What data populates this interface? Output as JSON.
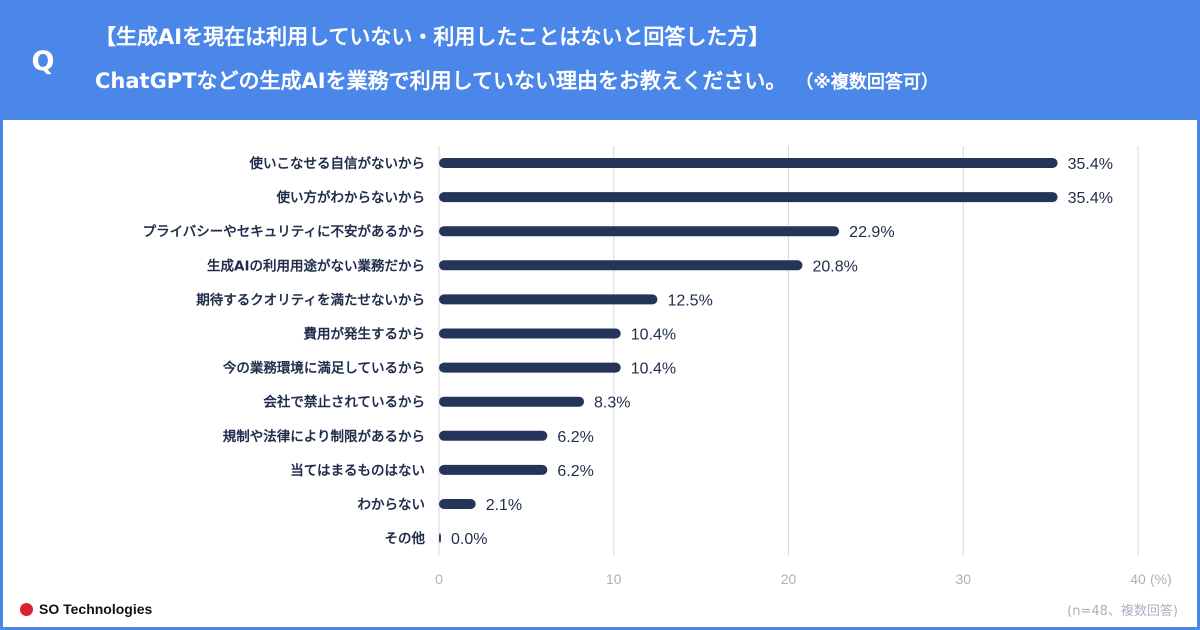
{
  "header": {
    "q_mark": "Q",
    "title_line1": "【生成AIを現在は利用していない・利用したことはないと回答した方】",
    "title_line2": "ChatGPTなどの生成AIを業務で利用していない理由をお教えください。",
    "title_note": "（※複数回答可）"
  },
  "footer": {
    "brand": "SO Technologies",
    "sample_note": "(n=48、複数回答)"
  },
  "colors": {
    "header_bg": "#4b87e8",
    "bar": "#25355a",
    "grid": "#d6d9de",
    "logo_dot": "#d9232e"
  },
  "chart_data": {
    "type": "bar",
    "orientation": "horizontal",
    "title": "ChatGPTなどの生成AIを業務で利用していない理由をお教えください。",
    "categories": [
      "使いこなせる自信がないから",
      "使い方がわからないから",
      "プライバシーやセキュリティに不安があるから",
      "生成AIの利用用途がない業務だから",
      "期待するクオリティを満たせないから",
      "費用が発生するから",
      "今の業務環境に満足しているから",
      "会社で禁止されているから",
      "規制や法律により制限があるから",
      "当てはまるものはない",
      "わからない",
      "その他"
    ],
    "values": [
      35.4,
      35.4,
      22.9,
      20.8,
      12.5,
      10.4,
      10.4,
      8.3,
      6.2,
      6.2,
      2.1,
      0.0
    ],
    "value_labels": [
      "35.4%",
      "35.4%",
      "22.9%",
      "20.8%",
      "12.5%",
      "10.4%",
      "10.4%",
      "8.3%",
      "6.2%",
      "6.2%",
      "2.1%",
      "0.0%"
    ],
    "xlim": [
      0,
      40
    ],
    "xticks": [
      0,
      10,
      20,
      30,
      40
    ],
    "xtick_labels": [
      "0",
      "10",
      "20",
      "30",
      "40"
    ],
    "x_unit": "(%)",
    "grid": true
  }
}
